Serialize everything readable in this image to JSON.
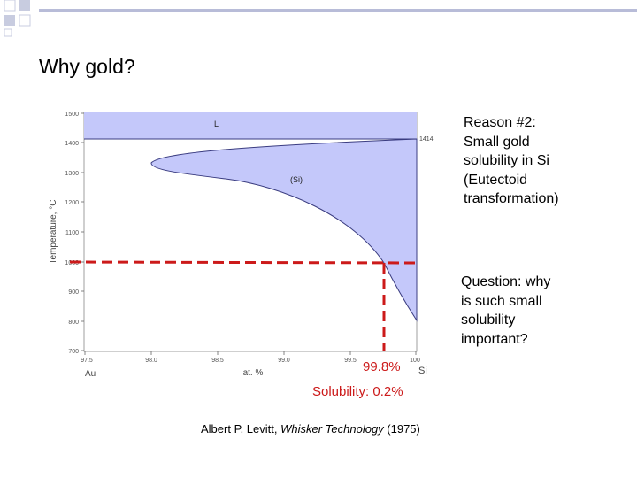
{
  "slide": {
    "title": "Why gold?",
    "reason_lines": [
      "Reason #2:",
      "Small gold",
      "solubility in Si",
      "(Eutectoid",
      "transformation)"
    ],
    "question_lines": [
      "Question: why",
      "is such small",
      "solubility",
      "important?"
    ],
    "annotation_percent": "99.8%",
    "annotation_solubility": "Solubility: 0.2%",
    "citation_author": "Albert P. Levitt, ",
    "citation_title": "Whisker Technology",
    "citation_year": " (1975)"
  },
  "diagram": {
    "y_axis_label": "Temperature, °C",
    "y_ticks": [
      "1500",
      "1400",
      "1300",
      "1200",
      "1100",
      "1000",
      "900",
      "800",
      "700"
    ],
    "x_ticks": [
      "97.5",
      "98.0",
      "98.5",
      "99.0",
      "99.5",
      "100"
    ],
    "x_axis_label": "at. %",
    "x_left_element": "Au",
    "x_right_element": "Si",
    "liquid_label": "L",
    "solid_label": "(Si)",
    "melting_point_label": "1414",
    "colors": {
      "fill": "#c4c8fa",
      "stroke": "#3a3c80",
      "annotation": "#cc1a1a"
    }
  }
}
